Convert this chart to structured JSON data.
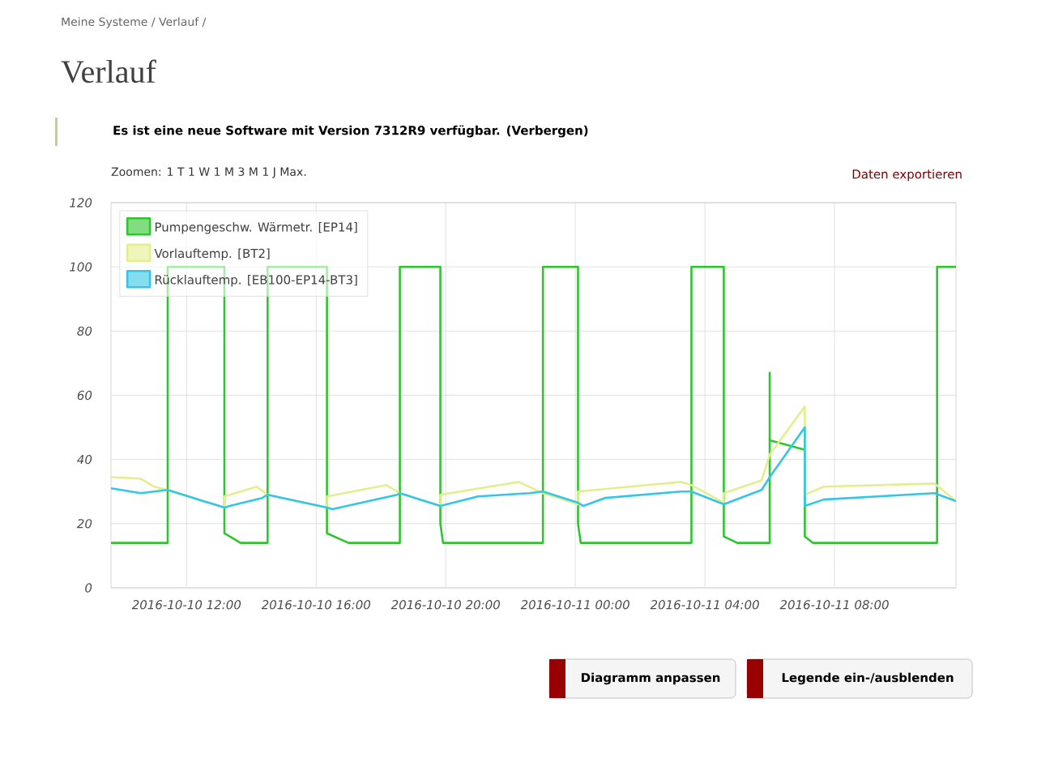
{
  "chart_data": {
    "type": "line",
    "title": "Verlauf",
    "subtitle": "Es ist eine neue Software mit Version 7312R9 verfügbar. (Verbergen)",
    "annotations": [
      "Meine Systeme / Verlauf /",
      "Zoomen: 1 T 1 W 1 M 3 M 1 J Max.",
      "Daten exportieren",
      "Diagramm anpassen",
      "Legende ein-/ausblenden"
    ],
    "xlim": [
      "2016-10-10T09:40",
      "2016-10-11T11:45"
    ],
    "xticks": [
      {
        "value": "2016-10-10T12:00",
        "label": "2016-10-10 12:00"
      },
      {
        "value": "2016-10-10T16:00",
        "label": "2016-10-10 16:00"
      },
      {
        "value": "2016-10-10T20:00",
        "label": "2016-10-10 20:00"
      },
      {
        "value": "2016-10-11T00:00",
        "label": "2016-10-11 00:00"
      },
      {
        "value": "2016-10-11T04:00",
        "label": "2016-10-11 04:00"
      },
      {
        "value": "2016-10-11T08:00",
        "label": "2016-10-11 08:00"
      }
    ],
    "ylim": [
      0,
      120
    ],
    "yticks": [
      0,
      20,
      40,
      60,
      80,
      100,
      120
    ],
    "grid": true,
    "legend": "top left",
    "series": [
      {
        "name": "Pumpengeschw. Wärmetr. [EP14]",
        "color": "#2ec52e",
        "x": [
          "2016-10-10T09:40",
          "2016-10-10T11:25",
          "2016-10-10T11:25",
          "2016-10-10T13:10",
          "2016-10-10T13:10",
          "2016-10-10T13:40",
          "2016-10-10T14:30",
          "2016-10-10T14:30",
          "2016-10-10T16:20",
          "2016-10-10T16:20",
          "2016-10-10T17:00",
          "2016-10-10T18:35",
          "2016-10-10T18:35",
          "2016-10-10T19:50",
          "2016-10-10T19:50",
          "2016-10-10T19:55",
          "2016-10-10T23:00",
          "2016-10-10T23:00",
          "2016-10-11T00:05",
          "2016-10-11T00:05",
          "2016-10-11T00:10",
          "2016-10-11T03:35",
          "2016-10-11T03:35",
          "2016-10-11T04:35",
          "2016-10-11T04:35",
          "2016-10-11T05:00",
          "2016-10-11T06:00",
          "2016-10-11T06:00",
          "2016-10-11T06:00",
          "2016-10-11T07:05",
          "2016-10-11T07:05",
          "2016-10-11T07:20",
          "2016-10-11T11:10",
          "2016-10-11T11:10",
          "2016-10-11T11:45"
        ],
        "values": [
          14,
          14,
          100,
          100,
          17,
          14,
          14,
          100,
          100,
          17,
          14,
          14,
          100,
          100,
          20,
          14,
          14,
          100,
          100,
          20,
          14,
          14,
          100,
          100,
          16,
          14,
          14,
          67,
          46,
          43,
          16,
          14,
          14,
          100,
          100
        ]
      },
      {
        "name": "Vorlauftemp. [BT2]",
        "color": "#e4ee8e",
        "x": [
          "2016-10-10T09:40",
          "2016-10-10T10:35",
          "2016-10-10T11:00",
          "2016-10-10T11:25",
          "2016-10-10T13:10",
          "2016-10-10T13:10",
          "2016-10-10T14:10",
          "2016-10-10T14:30",
          "2016-10-10T16:20",
          "2016-10-10T16:20",
          "2016-10-10T18:10",
          "2016-10-10T18:35",
          "2016-10-10T19:50",
          "2016-10-10T19:50",
          "2016-10-10T22:15",
          "2016-10-10T23:00",
          "2016-10-11T00:05",
          "2016-10-11T00:05",
          "2016-10-11T03:15",
          "2016-10-11T03:35",
          "2016-10-11T04:35",
          "2016-10-11T04:35",
          "2016-10-11T05:45",
          "2016-10-11T06:00",
          "2016-10-11T07:05",
          "2016-10-11T07:05",
          "2016-10-11T07:40",
          "2016-10-11T11:05",
          "2016-10-11T11:45"
        ],
        "values": [
          34.5,
          34,
          31.5,
          30.5,
          25,
          28.5,
          31.5,
          29,
          25,
          28.5,
          32,
          29.5,
          25.5,
          29,
          33,
          29.5,
          26,
          30,
          33,
          32,
          26.5,
          29.5,
          33.5,
          41.5,
          56.5,
          29,
          31.5,
          32.5,
          27
        ]
      },
      {
        "name": "Rücklauftemp. [EB100-EP14-BT3]",
        "color": "#33c6e6",
        "x": [
          "2016-10-10T09:40",
          "2016-10-10T10:35",
          "2016-10-10T11:25",
          "2016-10-10T13:10",
          "2016-10-10T13:20",
          "2016-10-10T14:20",
          "2016-10-10T14:30",
          "2016-10-10T16:20",
          "2016-10-10T16:30",
          "2016-10-10T18:30",
          "2016-10-10T18:35",
          "2016-10-10T19:50",
          "2016-10-10T21:00",
          "2016-10-10T22:35",
          "2016-10-10T23:00",
          "2016-10-11T00:05",
          "2016-10-11T00:15",
          "2016-10-11T00:55",
          "2016-10-11T03:15",
          "2016-10-11T03:35",
          "2016-10-11T04:35",
          "2016-10-11T05:45",
          "2016-10-11T06:00",
          "2016-10-11T07:05",
          "2016-10-11T07:05",
          "2016-10-11T07:40",
          "2016-10-11T11:05",
          "2016-10-11T11:45"
        ],
        "values": [
          31,
          29.5,
          30.5,
          25,
          25.5,
          28,
          29,
          25,
          24.5,
          29,
          29.5,
          25.5,
          28.5,
          29.5,
          30,
          26.5,
          25.5,
          28,
          30,
          30,
          26,
          30.5,
          34.5,
          50,
          25.5,
          27.5,
          29.5,
          27
        ]
      }
    ]
  }
}
